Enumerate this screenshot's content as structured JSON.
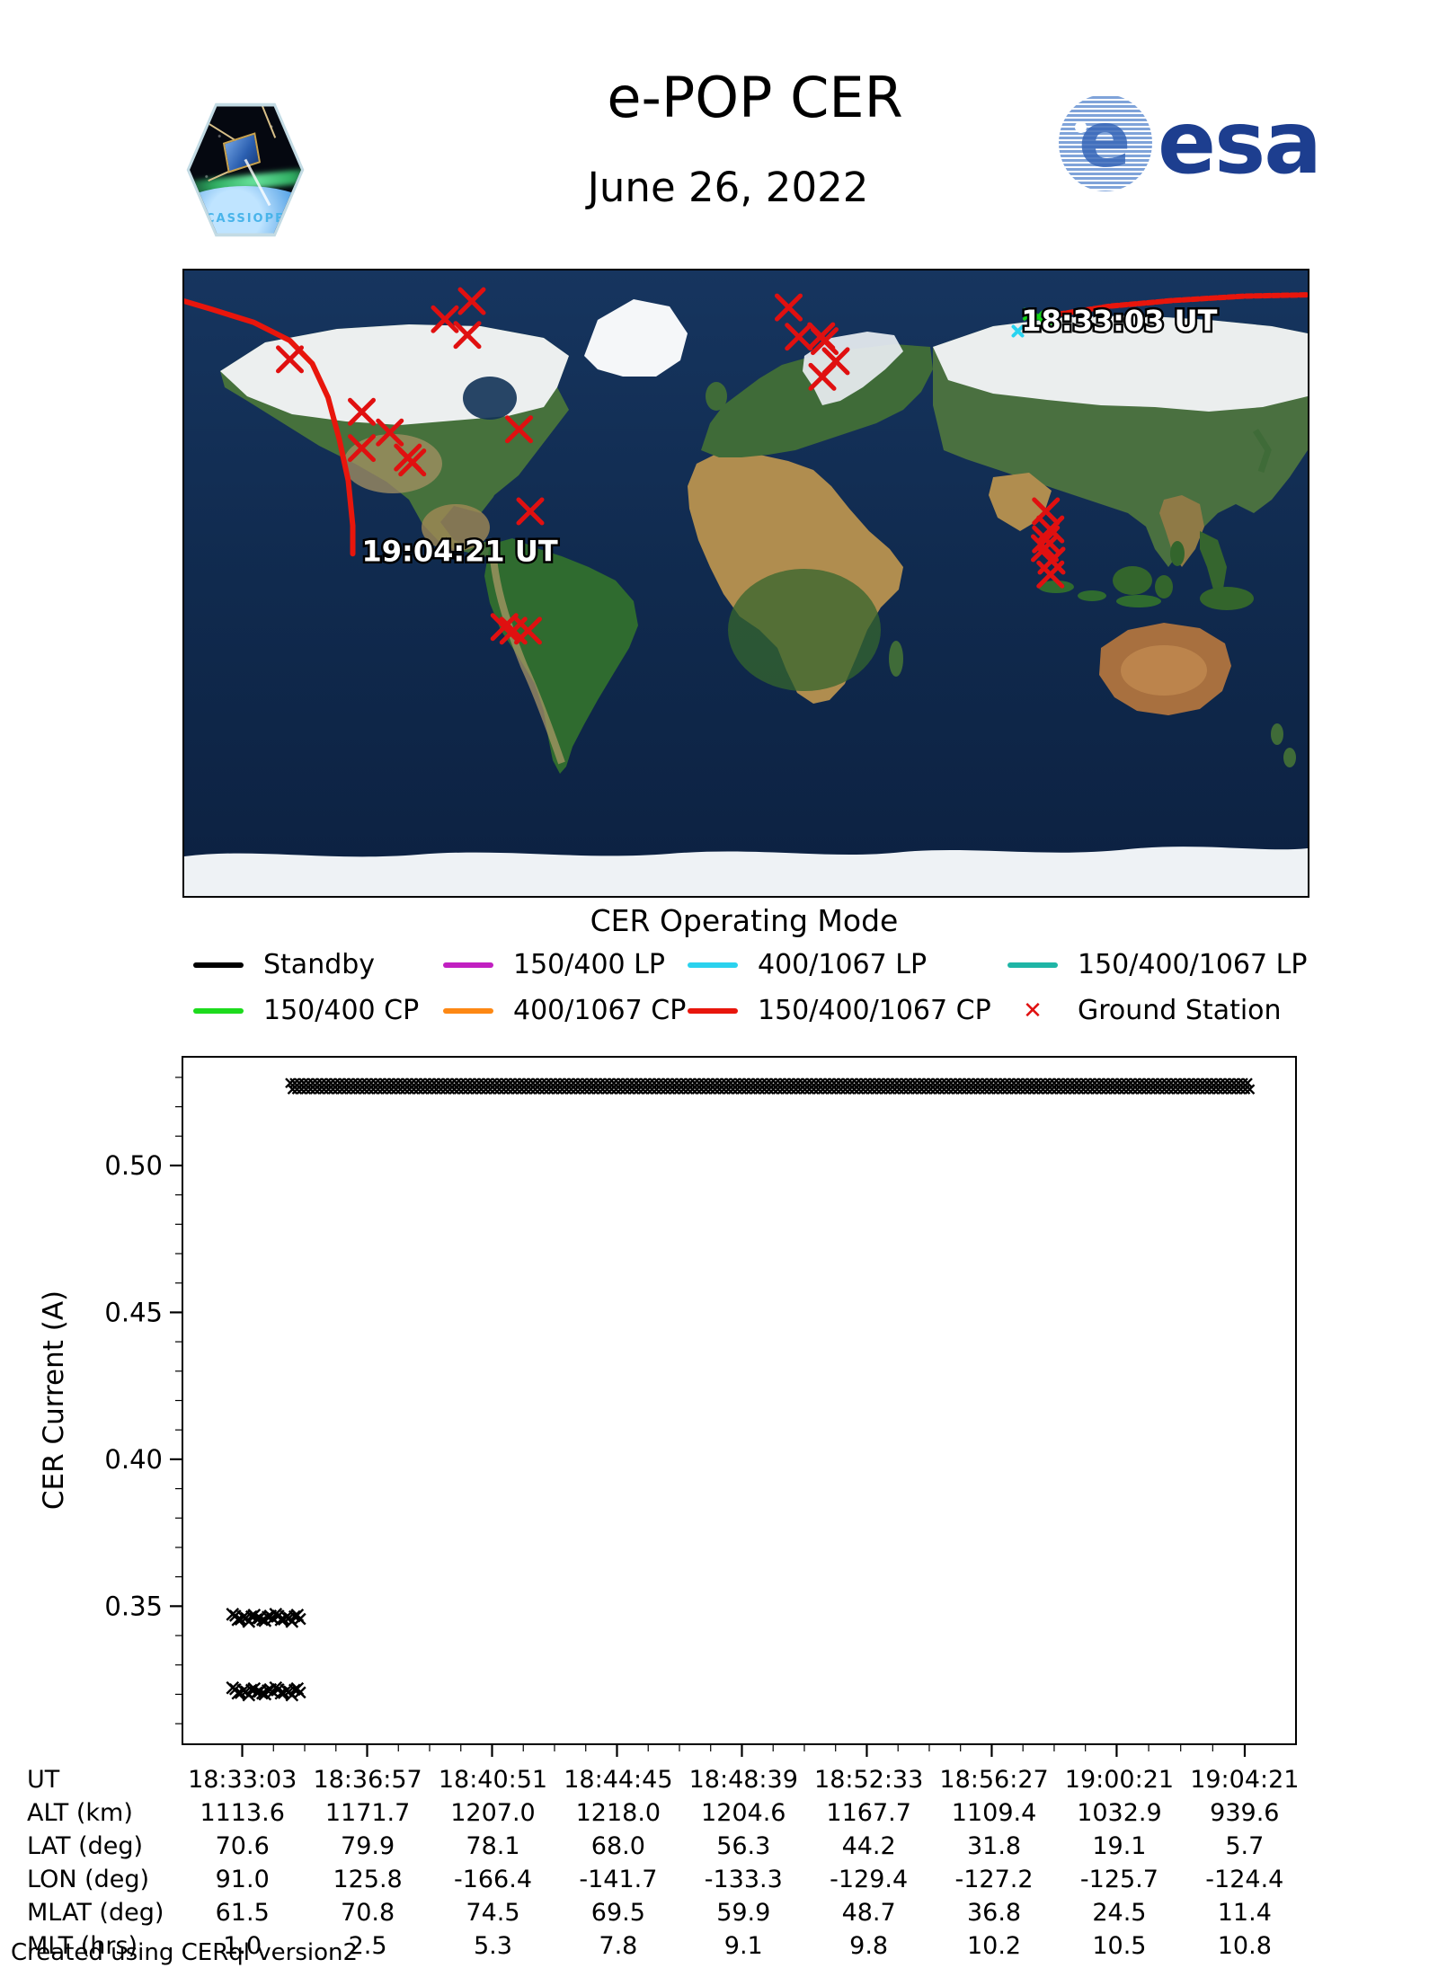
{
  "header": {
    "title": "e-POP CER",
    "date": "June 26, 2022",
    "esa_logo_text": "esa",
    "esa_globe_letter": "e",
    "patch_label": "CASSIOPE"
  },
  "map": {
    "caption": "CER Operating Mode",
    "start_time_label": "18:33:03 UT",
    "end_time_label": "19:04:21 UT",
    "track_color": "#e8160c",
    "station_color": "#e01010",
    "start_marker_green": "#17d417",
    "start_marker_cyan": "#29d3f0",
    "track_east": [
      [
        0.778,
        0.07
      ],
      [
        0.824,
        0.057
      ],
      [
        0.88,
        0.048
      ],
      [
        0.944,
        0.041
      ],
      [
        1.0,
        0.039
      ]
    ],
    "track_west": [
      [
        0.0,
        0.049
      ],
      [
        0.026,
        0.063
      ],
      [
        0.062,
        0.083
      ],
      [
        0.094,
        0.112
      ],
      [
        0.114,
        0.149
      ],
      [
        0.128,
        0.203
      ],
      [
        0.138,
        0.27
      ],
      [
        0.146,
        0.336
      ],
      [
        0.15,
        0.408
      ],
      [
        0.15,
        0.453
      ]
    ],
    "start_markers_green": [
      [
        0.752,
        0.07
      ],
      [
        0.76,
        0.074
      ],
      [
        0.768,
        0.077
      ]
    ],
    "start_markers_cyan": [
      [
        0.742,
        0.097
      ]
    ],
    "label_positions": {
      "start": [
        0.745,
        0.096
      ],
      "end": [
        0.158,
        0.465
      ]
    },
    "ground_stations": [
      [
        0.256,
        0.049
      ],
      [
        0.232,
        0.078
      ],
      [
        0.252,
        0.103
      ],
      [
        0.094,
        0.142
      ],
      [
        0.158,
        0.226
      ],
      [
        0.183,
        0.259
      ],
      [
        0.158,
        0.284
      ],
      [
        0.199,
        0.299
      ],
      [
        0.203,
        0.307
      ],
      [
        0.298,
        0.254
      ],
      [
        0.308,
        0.385
      ],
      [
        0.285,
        0.57
      ],
      [
        0.293,
        0.576
      ],
      [
        0.306,
        0.576
      ],
      [
        0.538,
        0.059
      ],
      [
        0.547,
        0.106
      ],
      [
        0.567,
        0.105
      ],
      [
        0.57,
        0.113
      ],
      [
        0.58,
        0.145
      ],
      [
        0.568,
        0.17
      ],
      [
        0.767,
        0.385
      ],
      [
        0.771,
        0.414
      ],
      [
        0.767,
        0.43
      ],
      [
        0.766,
        0.444
      ],
      [
        0.772,
        0.464
      ],
      [
        0.771,
        0.486
      ]
    ]
  },
  "legend": {
    "rows": [
      [
        {
          "label": "Standby",
          "color": "#000000",
          "type": "line"
        },
        {
          "label": "150/400 LP",
          "color": "#c120c1",
          "type": "line"
        },
        {
          "label": "400/1067 LP",
          "color": "#2bd2ee",
          "type": "line"
        },
        {
          "label": "150/400/1067 LP",
          "color": "#1fb5a6",
          "type": "line"
        }
      ],
      [
        {
          "label": "150/400 CP",
          "color": "#1ddb1d",
          "type": "line"
        },
        {
          "label": "400/1067 CP",
          "color": "#fd8814",
          "type": "line"
        },
        {
          "label": "150/400/1067 CP",
          "color": "#e8160c",
          "type": "line"
        },
        {
          "label": "Ground Station",
          "color": "#e01010",
          "type": "x-marker",
          "marker": "✕"
        }
      ]
    ]
  },
  "chart_data": {
    "type": "scatter",
    "title": "",
    "xlabel": "",
    "ylabel": "CER Current (A)",
    "marker": "x",
    "marker_color": "#000000",
    "grid": false,
    "ylim": [
      0.303,
      0.537
    ],
    "yticks": [
      0.35,
      0.4,
      0.45,
      0.5
    ],
    "ytick_labels": [
      "0.35",
      "0.40",
      "0.45",
      "0.50"
    ],
    "y_minor_step": 0.01,
    "xlim_seconds": [
      66671,
      68757
    ],
    "xticks": [
      "18:33:03",
      "18:36:57",
      "18:40:51",
      "18:44:45",
      "18:48:39",
      "18:52:33",
      "18:56:27",
      "19:00:21",
      "19:04:21"
    ],
    "x_minor_per_interval": 3,
    "series": [
      {
        "name": "Standby",
        "color": "#000000",
        "current_a": 0.527,
        "start": "18:34:33",
        "end": "19:04:30",
        "style": "dense-band"
      },
      {
        "name": "Standby",
        "color": "#000000",
        "current_a": 0.346,
        "start": "18:32:45",
        "end": "18:34:56",
        "style": "cluster"
      },
      {
        "name": "Standby",
        "color": "#000000",
        "current_a": 0.321,
        "start": "18:32:45",
        "end": "18:34:48",
        "style": "cluster"
      }
    ]
  },
  "table": {
    "rows": [
      {
        "label": "UT",
        "values": [
          "18:33:03",
          "18:36:57",
          "18:40:51",
          "18:44:45",
          "18:48:39",
          "18:52:33",
          "18:56:27",
          "19:00:21",
          "19:04:21"
        ]
      },
      {
        "label": "ALT (km)",
        "values": [
          "1113.6",
          "1171.7",
          "1207.0",
          "1218.0",
          "1204.6",
          "1167.7",
          "1109.4",
          "1032.9",
          "939.6"
        ]
      },
      {
        "label": "LAT (deg)",
        "values": [
          "70.6",
          "79.9",
          "78.1",
          "68.0",
          "56.3",
          "44.2",
          "31.8",
          "19.1",
          "5.7"
        ]
      },
      {
        "label": "LON (deg)",
        "values": [
          "91.0",
          "125.8",
          "-166.4",
          "-141.7",
          "-133.3",
          "-129.4",
          "-127.2",
          "-125.7",
          "-124.4"
        ]
      },
      {
        "label": "MLAT (deg)",
        "values": [
          "61.5",
          "70.8",
          "74.5",
          "69.5",
          "59.9",
          "48.7",
          "36.8",
          "24.5",
          "11.4"
        ]
      },
      {
        "label": "MLT (hrs)",
        "values": [
          "1.0",
          "2.5",
          "5.3",
          "7.8",
          "9.1",
          "9.8",
          "10.2",
          "10.5",
          "10.8"
        ]
      }
    ]
  },
  "footer": {
    "credit": "Created using CERql version2"
  }
}
